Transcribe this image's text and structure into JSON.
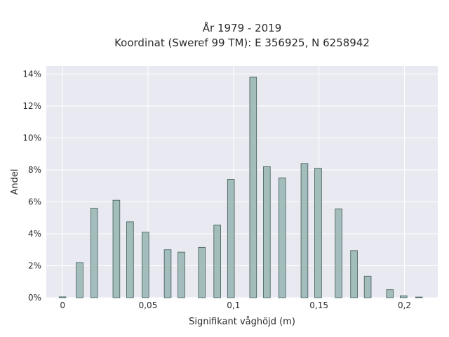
{
  "chart_data": {
    "type": "bar",
    "title": "År 1979 - 2019",
    "subtitle": "Koordinat (Sweref 99 TM): E 356925, N 6258942",
    "xlabel": "Signifikant våghöjd (m)",
    "ylabel": "Andel",
    "xlim": [
      -0.0095,
      0.2195
    ],
    "ylim": [
      0,
      14.5
    ],
    "x_ticks": [
      0,
      0.05,
      0.1,
      0.15,
      0.2
    ],
    "x_tick_labels": [
      "0",
      "0,05",
      "0,1",
      "0,15",
      "0,2"
    ],
    "y_ticks": [
      0,
      2,
      4,
      6,
      8,
      10,
      12,
      14
    ],
    "y_tick_labels": [
      "0%",
      "2%",
      "4%",
      "6%",
      "8%",
      "10%",
      "12%",
      "14%"
    ],
    "bar_width": 0.004,
    "grid": true,
    "bar_color": "#a3bcbc",
    "bar_edge_color": "#3d5a55",
    "background_color": "#e9e9f1",
    "x": [
      0,
      0.01,
      0.0185,
      0.0315,
      0.0395,
      0.0485,
      0.0615,
      0.0695,
      0.0815,
      0.0905,
      0.0985,
      0.1115,
      0.1195,
      0.1285,
      0.1415,
      0.1495,
      0.1615,
      0.1705,
      0.1785,
      0.1915,
      0.1995,
      0.2085
    ],
    "values": [
      0.05,
      2.2,
      5.6,
      6.1,
      4.75,
      4.1,
      3.0,
      2.85,
      3.15,
      4.55,
      7.4,
      13.8,
      8.2,
      7.5,
      8.4,
      8.1,
      5.55,
      2.95,
      1.35,
      0.5,
      0.12,
      0.04
    ]
  }
}
